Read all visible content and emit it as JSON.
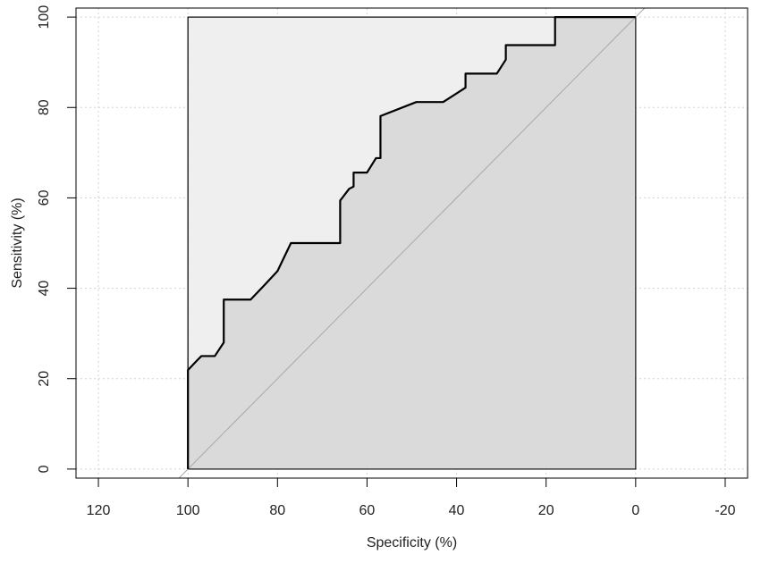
{
  "chart_data": {
    "type": "line",
    "title": "",
    "xlabel": "Specificity (%)",
    "ylabel": "Sensitivity (%)",
    "x_reversed": true,
    "xlim": [
      125,
      -25
    ],
    "ylim": [
      -2,
      102
    ],
    "x_ticks": [
      120,
      100,
      80,
      60,
      40,
      20,
      0,
      -20
    ],
    "y_ticks": [
      0,
      20,
      40,
      60,
      80,
      100
    ],
    "grid": true,
    "legend": "none",
    "diagonal_reference": true,
    "auc_polygon_fill": "#dadada",
    "max_area_fill": "#efefef",
    "curve_color": "#000000",
    "series": [
      {
        "x": [
          100,
          100,
          98,
          97,
          94,
          92,
          92,
          86,
          83,
          80,
          77,
          66,
          66,
          64,
          63,
          63,
          60,
          58,
          57,
          57,
          49,
          43,
          38,
          38,
          31,
          29,
          29,
          18,
          18,
          0
        ],
        "y": [
          0,
          21.9,
          24,
          25,
          25,
          28,
          37.5,
          37.5,
          40.6,
          43.8,
          50,
          50,
          59.4,
          62,
          62.5,
          65.6,
          65.6,
          68.8,
          68.8,
          78.1,
          81.2,
          81.2,
          84.4,
          87.5,
          87.5,
          90.6,
          93.8,
          93.8,
          100,
          100
        ]
      }
    ]
  }
}
